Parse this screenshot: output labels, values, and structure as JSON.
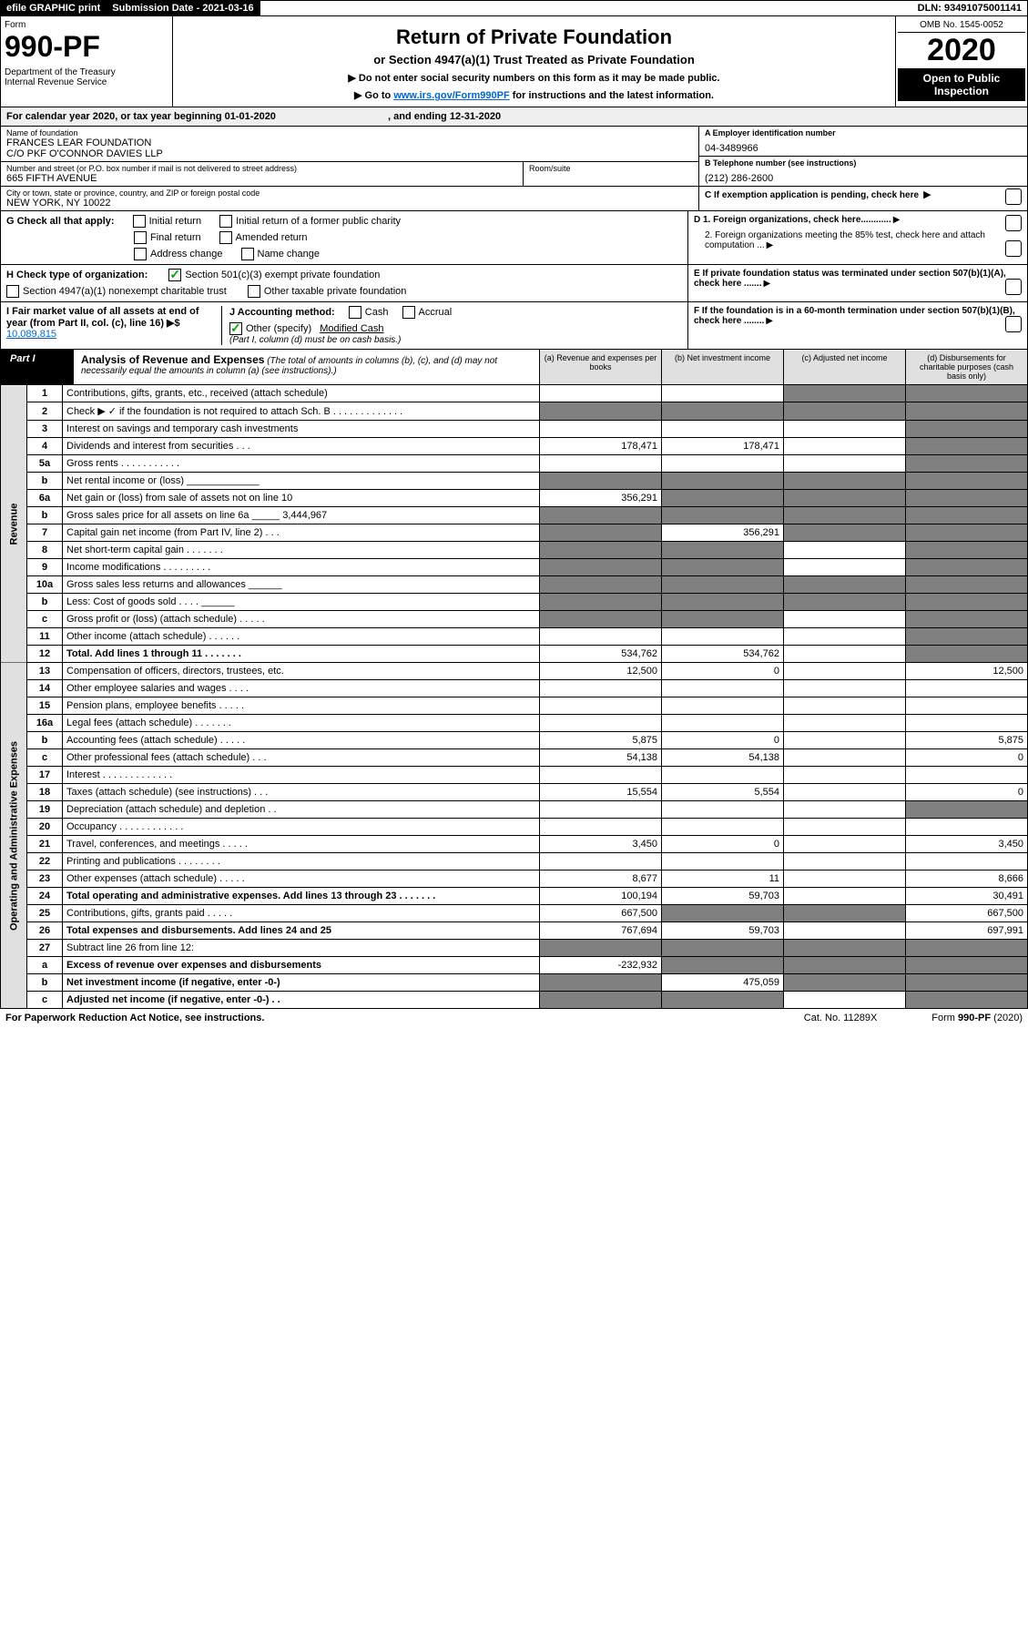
{
  "topbar": {
    "efile": "efile GRAPHIC print",
    "submission_label": "Submission Date - ",
    "submission_date": "2021-03-16",
    "dln_label": "DLN: ",
    "dln": "93491075001141"
  },
  "header": {
    "form_word": "Form",
    "form_number": "990-PF",
    "dept1": "Department of the Treasury",
    "dept2": "Internal Revenue Service",
    "title": "Return of Private Foundation",
    "subtitle": "or Section 4947(a)(1) Trust Treated as Private Foundation",
    "instr1": "▶ Do not enter social security numbers on this form as it may be made public.",
    "instr2_pre": "▶ Go to ",
    "instr2_link": "www.irs.gov/Form990PF",
    "instr2_post": " for instructions and the latest information.",
    "omb": "OMB No. 1545-0052",
    "year": "2020",
    "inspection": "Open to Public Inspection"
  },
  "calendar": {
    "pre": "For calendar year 2020, or tax year beginning ",
    "begin": "01-01-2020",
    "mid": " , and ending ",
    "end": "12-31-2020"
  },
  "foundation": {
    "name_label": "Name of foundation",
    "name1": "FRANCES LEAR FOUNDATION",
    "name2": "C/O PKF O'CONNOR DAVIES LLP",
    "addr_label": "Number and street (or P.O. box number if mail is not delivered to street address)",
    "addr": "665 FIFTH AVENUE",
    "room_label": "Room/suite",
    "city_label": "City or town, state or province, country, and ZIP or foreign postal code",
    "city": "NEW YORK, NY  10022",
    "ein_label": "A Employer identification number",
    "ein": "04-3489966",
    "phone_label": "B Telephone number (see instructions)",
    "phone": "(212) 286-2600",
    "c_label": "C If exemption application is pending, check here",
    "d1": "D 1. Foreign organizations, check here............",
    "d2": "2. Foreign organizations meeting the 85% test, check here and attach computation ...",
    "e_label": "E  If private foundation status was terminated under section 507(b)(1)(A), check here .......",
    "f_label": "F  If the foundation is in a 60-month termination under section 507(b)(1)(B), check here ........"
  },
  "checks": {
    "g_label": "G Check all that apply:",
    "initial": "Initial return",
    "initial_former": "Initial return of a former public charity",
    "final": "Final return",
    "amended": "Amended return",
    "address": "Address change",
    "name": "Name change",
    "h_label": "H Check type of organization:",
    "h1": "Section 501(c)(3) exempt private foundation",
    "h2": "Section 4947(a)(1) nonexempt charitable trust",
    "h3": "Other taxable private foundation",
    "i_label": "I Fair market value of all assets at end of year (from Part II, col. (c), line 16) ▶$",
    "i_value": "10,089,815",
    "j_label": "J Accounting method:",
    "j_cash": "Cash",
    "j_accrual": "Accrual",
    "j_other": "Other (specify)",
    "j_other_val": "Modified Cash",
    "j_note": "(Part I, column (d) must be on cash basis.)"
  },
  "part1": {
    "label": "Part I",
    "title": "Analysis of Revenue and Expenses",
    "note": "(The total of amounts in columns (b), (c), and (d) may not necessarily equal the amounts in column (a) (see instructions).)",
    "col_a": "(a)   Revenue and expenses per books",
    "col_b": "(b)  Net investment income",
    "col_c": "(c)  Adjusted net income",
    "col_d": "(d)  Disbursements for charitable purposes (cash basis only)"
  },
  "vert": {
    "revenue": "Revenue",
    "expenses": "Operating and Administrative Expenses"
  },
  "rows": [
    {
      "n": "1",
      "d": "grey",
      "a": "",
      "b": "",
      "c": "grey"
    },
    {
      "n": "2",
      "d": "grey",
      "a": "grey",
      "b": "grey",
      "c": "grey",
      "nobold": true
    },
    {
      "n": "3",
      "d": "grey",
      "a": "",
      "b": "",
      "c": ""
    },
    {
      "n": "4",
      "d": "grey",
      "a": "178,471",
      "b": "178,471",
      "c": ""
    },
    {
      "n": "5a",
      "d": "grey",
      "a": "",
      "b": "",
      "c": ""
    },
    {
      "n": "b",
      "d": "grey",
      "a": "grey",
      "b": "grey",
      "c": "grey"
    },
    {
      "n": "6a",
      "d": "grey",
      "a": "356,291",
      "b": "grey",
      "c": "grey"
    },
    {
      "n": "b",
      "d": "grey",
      "a": "grey",
      "b": "grey",
      "c": "grey"
    },
    {
      "n": "7",
      "d": "grey",
      "a": "grey",
      "b": "356,291",
      "c": "grey"
    },
    {
      "n": "8",
      "d": "grey",
      "a": "grey",
      "b": "grey",
      "c": ""
    },
    {
      "n": "9",
      "d": "grey",
      "a": "grey",
      "b": "grey",
      "c": ""
    },
    {
      "n": "10a",
      "d": "grey",
      "a": "grey",
      "b": "grey",
      "c": "grey"
    },
    {
      "n": "b",
      "d": "grey",
      "a": "grey",
      "b": "grey",
      "c": "grey"
    },
    {
      "n": "c",
      "d": "grey",
      "a": "grey",
      "b": "grey",
      "c": ""
    },
    {
      "n": "11",
      "d": "grey",
      "a": "",
      "b": "",
      "c": ""
    },
    {
      "n": "12",
      "d": "grey",
      "a": "534,762",
      "b": "534,762",
      "c": "",
      "bold": true
    }
  ],
  "exp_rows": [
    {
      "n": "13",
      "d": "12,500",
      "a": "12,500",
      "b": "0",
      "c": ""
    },
    {
      "n": "14",
      "d": "",
      "a": "",
      "b": "",
      "c": ""
    },
    {
      "n": "15",
      "d": "",
      "a": "",
      "b": "",
      "c": ""
    },
    {
      "n": "16a",
      "d": "",
      "a": "",
      "b": "",
      "c": ""
    },
    {
      "n": "b",
      "d": "5,875",
      "a": "5,875",
      "b": "0",
      "c": ""
    },
    {
      "n": "c",
      "d": "0",
      "a": "54,138",
      "b": "54,138",
      "c": ""
    },
    {
      "n": "17",
      "d": "",
      "a": "",
      "b": "",
      "c": ""
    },
    {
      "n": "18",
      "d": "0",
      "a": "15,554",
      "b": "5,554",
      "c": ""
    },
    {
      "n": "19",
      "d": "grey",
      "a": "",
      "b": "",
      "c": ""
    },
    {
      "n": "20",
      "d": "",
      "a": "",
      "b": "",
      "c": ""
    },
    {
      "n": "21",
      "d": "3,450",
      "a": "3,450",
      "b": "0",
      "c": ""
    },
    {
      "n": "22",
      "d": "",
      "a": "",
      "b": "",
      "c": ""
    },
    {
      "n": "23",
      "d": "8,666",
      "a": "8,677",
      "b": "11",
      "c": ""
    },
    {
      "n": "24",
      "d": "30,491",
      "a": "100,194",
      "b": "59,703",
      "c": "",
      "bold": true
    },
    {
      "n": "25",
      "d": "667,500",
      "a": "667,500",
      "b": "grey",
      "c": "grey"
    },
    {
      "n": "26",
      "d": "697,991",
      "a": "767,694",
      "b": "59,703",
      "c": "",
      "bold": true
    },
    {
      "n": "27",
      "d": "grey",
      "a": "grey",
      "b": "grey",
      "c": "grey"
    },
    {
      "n": "a",
      "d": "grey",
      "a": "-232,932",
      "b": "grey",
      "c": "grey",
      "bold": true
    },
    {
      "n": "b",
      "d": "grey",
      "a": "grey",
      "b": "475,059",
      "c": "grey",
      "bold": true
    },
    {
      "n": "c",
      "d": "grey",
      "a": "grey",
      "b": "grey",
      "c": "",
      "bold": true
    }
  ],
  "footer": {
    "left": "For Paperwork Reduction Act Notice, see instructions.",
    "mid": "Cat. No. 11289X",
    "right": "Form 990-PF (2020)"
  }
}
